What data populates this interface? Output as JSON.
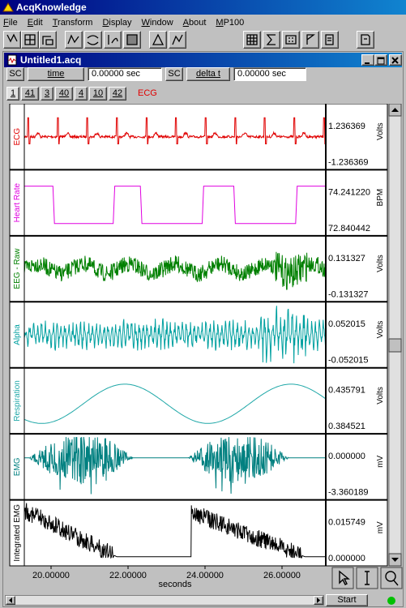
{
  "app": {
    "title": "AcqKnowledge"
  },
  "menu": [
    "File",
    "Edit",
    "Transform",
    "Display",
    "Window",
    "About",
    "MP100"
  ],
  "window": {
    "title": "Untitled1.acq"
  },
  "controls": {
    "sc1": "SC",
    "measure1": "time",
    "value1": "0.00000 sec",
    "sc2": "SC",
    "measure2": "delta t",
    "value2": "0.00000 sec"
  },
  "channel_buttons": [
    "1",
    "41",
    "3",
    "40",
    "4",
    "10",
    "42"
  ],
  "active_channel": {
    "name": "ECG",
    "color": "#e00000"
  },
  "channels": [
    {
      "name": "ECG",
      "top": "1.236369",
      "bottom": "-1.236369",
      "unit": "Volts",
      "color": "#e00000"
    },
    {
      "name": "Heart Rate",
      "top": "74.241220",
      "bottom": "72.840442",
      "unit": "BPM",
      "color": "#e000e0"
    },
    {
      "name": "EEG - Raw",
      "top": "0.131327",
      "bottom": "-0.131327",
      "unit": "Volts",
      "color": "#008000"
    },
    {
      "name": "Alpha",
      "top": "0.052015",
      "bottom": "-0.052015",
      "unit": "Volts",
      "color": "#00a0a0"
    },
    {
      "name": "Respiration",
      "top": "0.435791",
      "bottom": "0.384521",
      "unit": "Volts",
      "color": "#20a8a8"
    },
    {
      "name": "EMG",
      "top": "0.000000",
      "bottom": "-3.360189",
      "unit": "mV",
      "color": "#008080"
    },
    {
      "name": "Integrated EMG",
      "top": "0.015749",
      "bottom": "0.000000",
      "unit": "mV",
      "color": "#000000"
    }
  ],
  "time_axis": {
    "ticks": [
      "20.00000",
      "22.00000",
      "24.00000",
      "26.00000"
    ],
    "label": "seconds"
  },
  "status": {
    "start": "Start"
  }
}
